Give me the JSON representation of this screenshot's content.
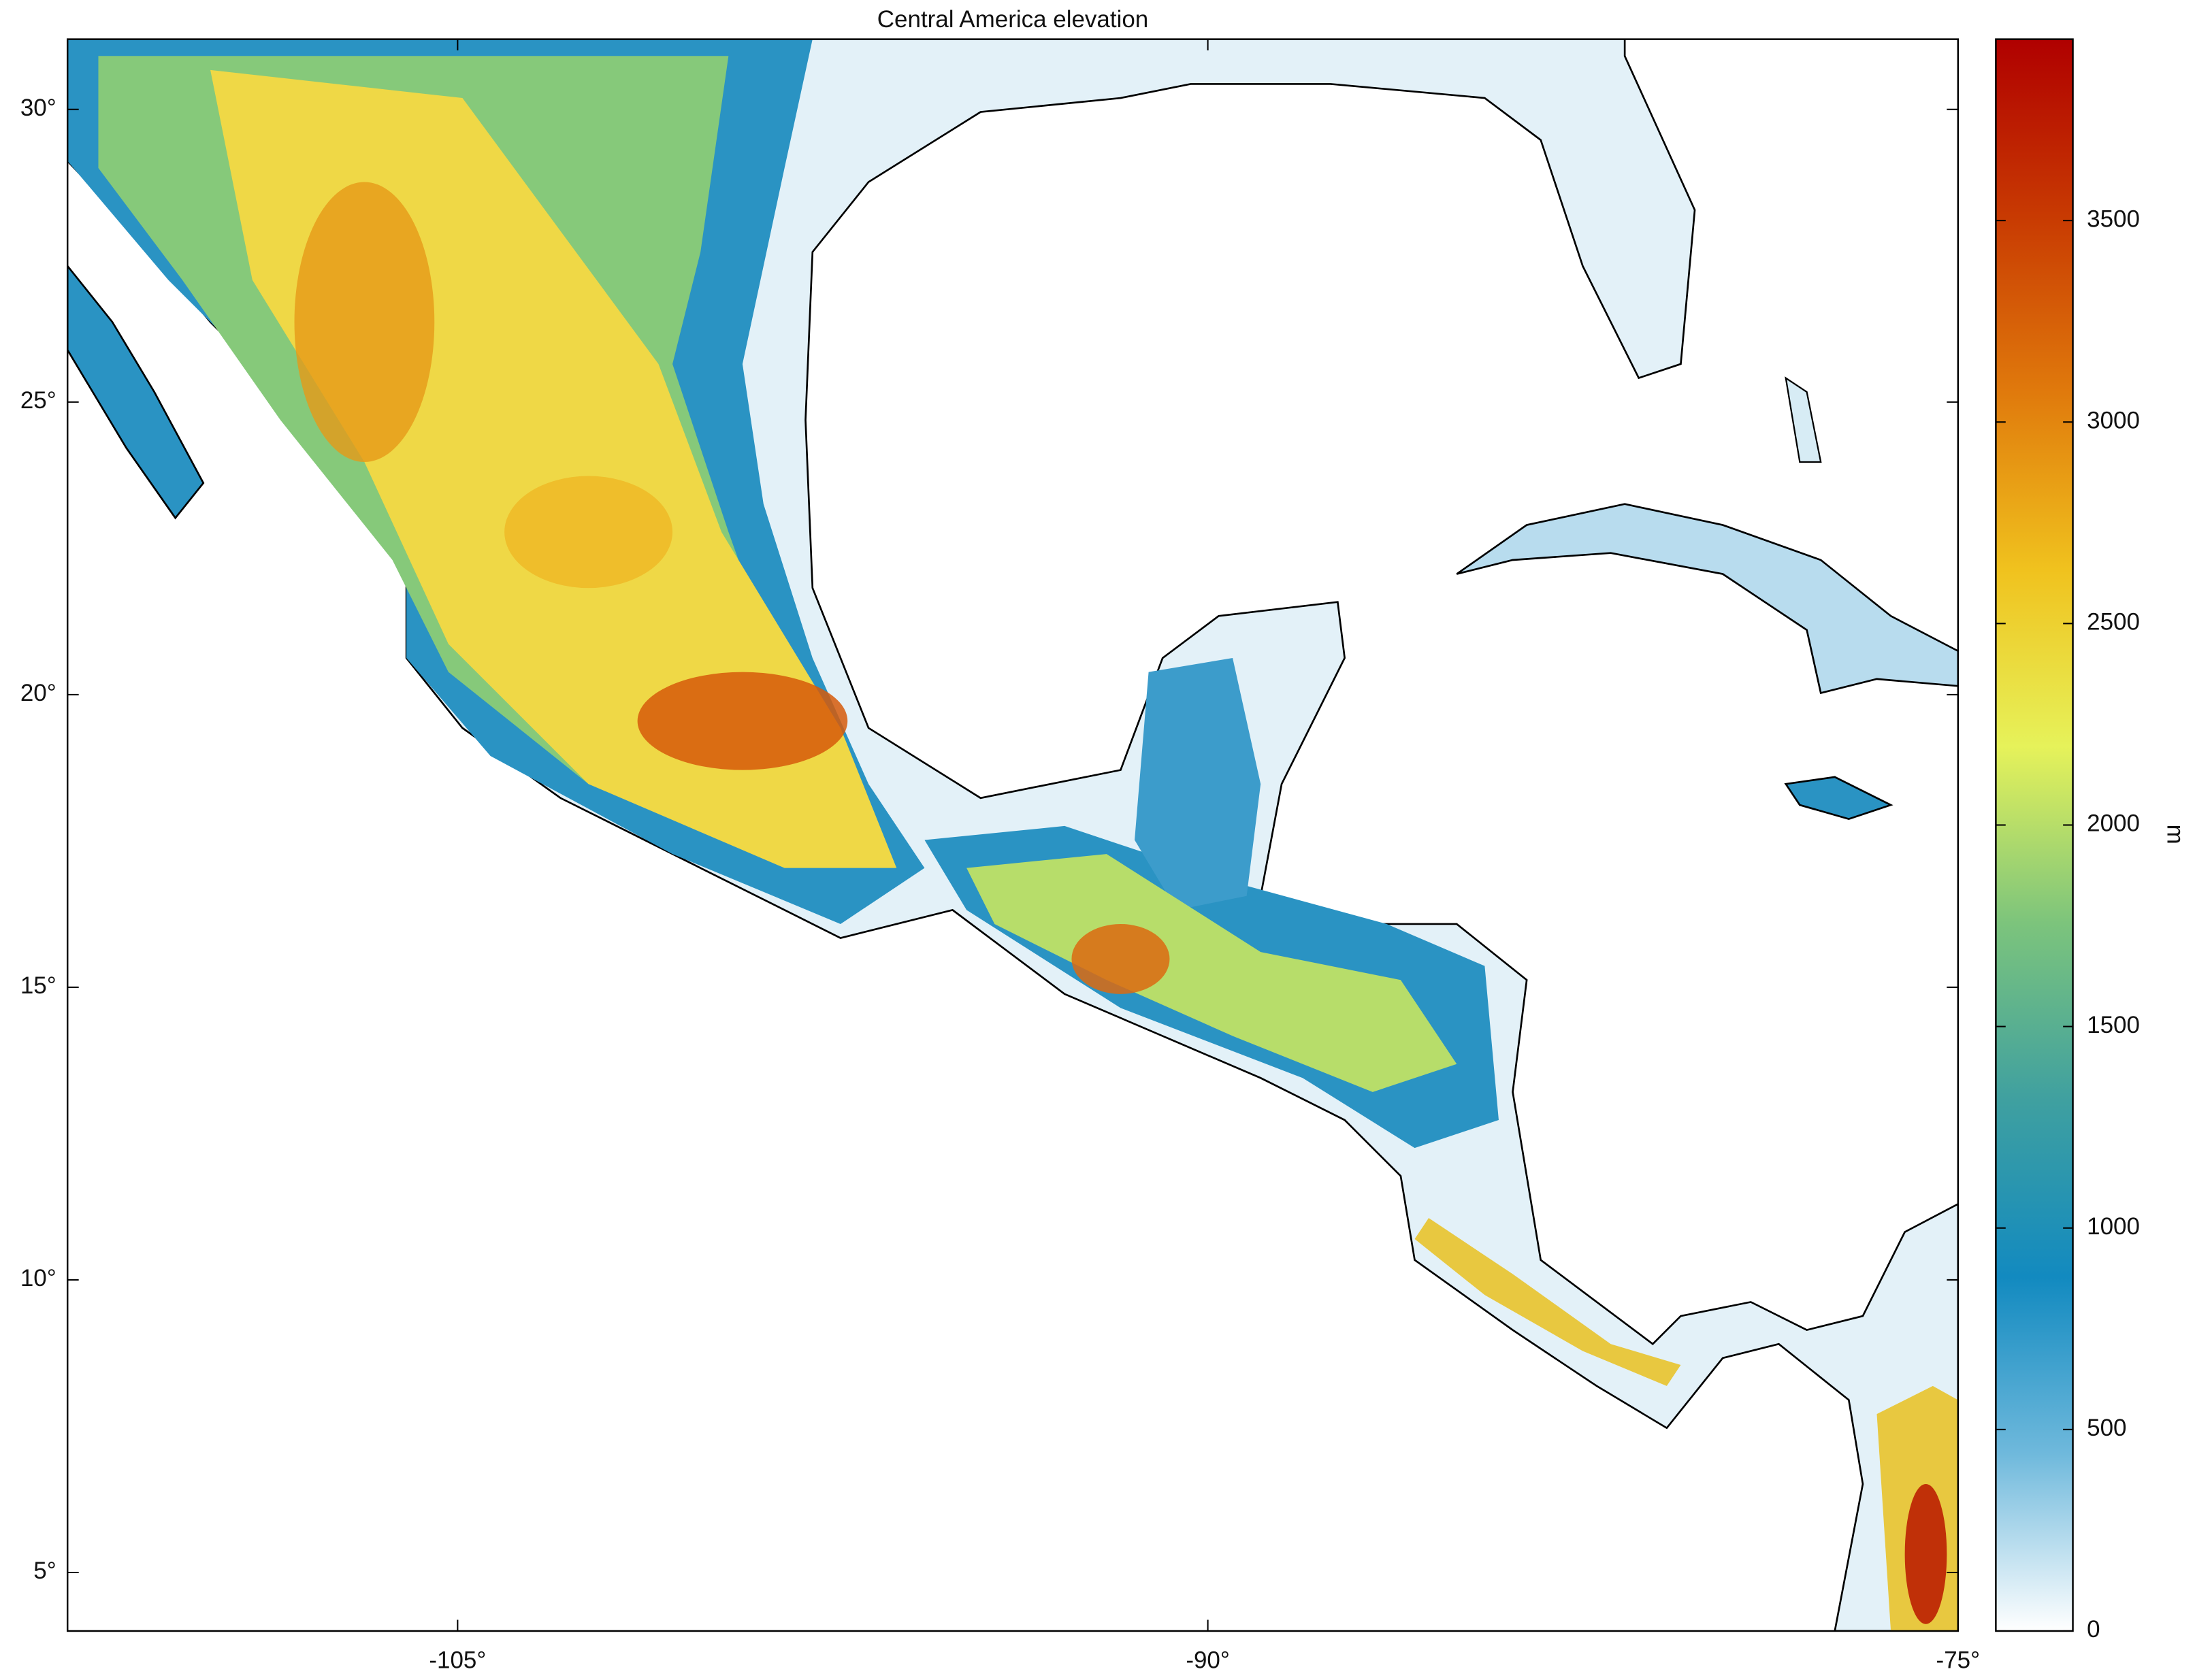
{
  "title": "Central America elevation",
  "map": {
    "xlim": [
      -112.8,
      -75
    ],
    "ylim": [
      4,
      31.2
    ],
    "xticks": [
      {
        "value": -105,
        "label": "-105°"
      },
      {
        "value": -90,
        "label": "-90°"
      },
      {
        "value": -75,
        "label": "-75°"
      }
    ],
    "yticks": [
      {
        "value": 5,
        "label": "5°"
      },
      {
        "value": 10,
        "label": "10°"
      },
      {
        "value": 15,
        "label": "15°"
      },
      {
        "value": 20,
        "label": "20°"
      },
      {
        "value": 25,
        "label": "25°"
      },
      {
        "value": 30,
        "label": "30°"
      }
    ]
  },
  "colorbar": {
    "label": "m",
    "lim": [
      0,
      3950
    ],
    "ticks": [
      0,
      500,
      1000,
      1500,
      2000,
      2500,
      3000,
      3500
    ],
    "colors": [
      "#ffffff",
      "#6fb9dc",
      "#128ac0",
      "#3fa0a0",
      "#7cc47c",
      "#e6f25a",
      "#f0c21e",
      "#e07a0c",
      "#c83a02",
      "#b00000"
    ]
  }
}
